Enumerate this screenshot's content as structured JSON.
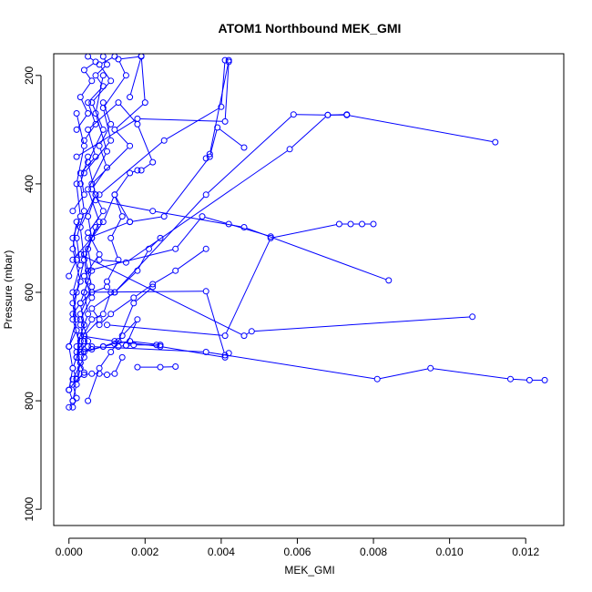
{
  "chart_data": {
    "type": "line",
    "title": "ATOM1 Northbound MEK_GMI",
    "xlabel": "MEK_GMI",
    "ylabel": "Pressure (mbar)",
    "xlim": [
      -0.0004,
      0.013
    ],
    "ylim": [
      1030,
      160
    ],
    "y_reversed": true,
    "grid": false,
    "x_ticks": [
      "0.000",
      "0.002",
      "0.004",
      "0.006",
      "0.008",
      "0.010",
      "0.012"
    ],
    "y_ticks": [
      "200",
      "400",
      "600",
      "800",
      "1000"
    ],
    "colors": {
      "series": "#0000ff",
      "axis": "#000000",
      "background": "#ffffff"
    },
    "series": [
      {
        "x": [
          0.0,
          0.0001,
          0.0,
          0.0002,
          0.0001,
          0.0003,
          0.0001,
          0.0002,
          0.0004,
          0.0003,
          0.0007,
          0.0005,
          0.0009,
          0.0006,
          0.0011,
          0.0008,
          0.0012
        ],
        "y": [
          812,
          800,
          780,
          760,
          740,
          700,
          650,
          600,
          540,
          480,
          420,
          360,
          300,
          250,
          210,
          180,
          165
        ]
      },
      {
        "x": [
          0.0001,
          0.0002,
          0.0001,
          0.0004,
          0.0002,
          0.0005,
          0.0003,
          0.0006,
          0.0004,
          0.0008,
          0.0005,
          0.001,
          0.0007,
          0.0009
        ],
        "y": [
          812,
          795,
          770,
          748,
          720,
          690,
          640,
          590,
          530,
          470,
          410,
          340,
          270,
          200
        ]
      },
      {
        "x": [
          0.0002,
          0.0004,
          0.0006,
          0.0008,
          0.001,
          0.0012,
          0.0014
        ],
        "y": [
          760,
          752,
          750,
          750,
          752,
          750,
          720
        ]
      },
      {
        "x": [
          0.0003,
          0.0005,
          0.0004,
          0.0008,
          0.0006,
          0.0012,
          0.0018,
          0.0021,
          0.0024
        ],
        "y": [
          730,
          700,
          680,
          650,
          630,
          600,
          560,
          520,
          500
        ]
      },
      {
        "x": [
          0.0018,
          0.0024,
          0.0028
        ],
        "y": [
          738,
          738,
          737
        ]
      },
      {
        "x": [
          0.0013,
          0.0015,
          0.0017,
          0.0023,
          0.0024
        ],
        "y": [
          700,
          698,
          697,
          697,
          697
        ]
      },
      {
        "x": [
          0.0008,
          0.0011,
          0.0017,
          0.0022,
          0.0028,
          0.0036
        ],
        "y": [
          660,
          640,
          610,
          585,
          560,
          520
        ]
      },
      {
        "x": [
          0.0003,
          0.0012,
          0.0024,
          0.0041,
          0.0042
        ],
        "y": [
          680,
          690,
          700,
          720,
          712
        ]
      },
      {
        "x": [
          0.0007,
          0.0022,
          0.0046,
          0.0084
        ],
        "y": [
          430,
          450,
          480,
          578
        ]
      },
      {
        "x": [
          0.0006,
          0.0036,
          0.0081,
          0.0095,
          0.0116,
          0.0121,
          0.0125
        ],
        "y": [
          700,
          710,
          760,
          740,
          760,
          762,
          762
        ]
      },
      {
        "x": [
          0.0004,
          0.0036,
          0.0041
        ],
        "y": [
          600,
          598,
          716
        ]
      },
      {
        "x": [
          0.001,
          0.0041,
          0.0053,
          0.0071,
          0.0074,
          0.0077,
          0.008
        ],
        "y": [
          660,
          680,
          500,
          474,
          474,
          474,
          474
        ]
      },
      {
        "x": [
          0.0005,
          0.0028,
          0.0035,
          0.0042,
          0.0053
        ],
        "y": [
          560,
          520,
          460,
          474,
          497
        ]
      },
      {
        "x": [
          0.0003,
          0.0046,
          0.0048,
          0.0106
        ],
        "y": [
          530,
          680,
          672,
          645
        ]
      },
      {
        "x": [
          0.0008,
          0.0015,
          0.0058,
          0.0068,
          0.0073
        ],
        "y": [
          540,
          545,
          336,
          273,
          272
        ]
      },
      {
        "x": [
          0.0012,
          0.0036,
          0.0059,
          0.0068,
          0.0073,
          0.0112
        ],
        "y": [
          600,
          420,
          272,
          273,
          273,
          323
        ]
      },
      {
        "x": [
          0.0005,
          0.0016,
          0.0025,
          0.0037,
          0.0039,
          0.0046
        ],
        "y": [
          500,
          470,
          460,
          350,
          296,
          333
        ]
      },
      {
        "x": [
          0.0008,
          0.0025,
          0.004,
          0.0041,
          0.0042,
          0.0037,
          0.0036
        ],
        "y": [
          420,
          320,
          258,
          172,
          172,
          345,
          353
        ]
      },
      {
        "x": [
          0.0002,
          0.0018,
          0.0041,
          0.0042
        ],
        "y": [
          350,
          280,
          285,
          175
        ]
      },
      {
        "x": [
          0.0004,
          0.0011,
          0.0009,
          0.0015,
          0.0013,
          0.0019,
          0.0016
        ],
        "y": [
          380,
          320,
          260,
          200,
          170,
          165,
          240
        ]
      },
      {
        "x": [
          0.0001,
          0.0004,
          0.0003,
          0.0007,
          0.0005,
          0.0013,
          0.0018,
          0.0022,
          0.0019
        ],
        "y": [
          450,
          420,
          380,
          350,
          300,
          250,
          290,
          360,
          375
        ]
      },
      {
        "x": [
          0.0,
          0.0002,
          0.0001,
          0.0003,
          0.0002,
          0.0004,
          0.0002
        ],
        "y": [
          570,
          540,
          500,
          460,
          400,
          330,
          270
        ]
      },
      {
        "x": [
          0.0,
          0.0002,
          0.0001,
          0.0003,
          0.0001,
          0.0002
        ],
        "y": [
          700,
          670,
          620,
          580,
          520,
          470
        ]
      },
      {
        "x": [
          0.0001,
          0.0006,
          0.0009,
          0.0012,
          0.0016,
          0.0018
        ],
        "y": [
          540,
          500,
          470,
          420,
          380,
          375
        ]
      },
      {
        "x": [
          0.0005,
          0.0008,
          0.0011,
          0.0014,
          0.0018,
          0.0015
        ],
        "y": [
          800,
          740,
          710,
          680,
          650,
          698
        ]
      },
      {
        "x": [
          0.0001,
          0.0004,
          0.0003,
          0.0006,
          0.0009,
          0.0011
        ],
        "y": [
          760,
          720,
          690,
          650,
          640,
          600
        ]
      },
      {
        "x": [
          0.0002,
          0.0003,
          0.0002,
          0.0004,
          0.0003,
          0.0005,
          0.0004,
          0.0006,
          0.0005,
          0.0007
        ],
        "y": [
          760,
          730,
          700,
          660,
          620,
          580,
          540,
          500,
          460,
          420
        ]
      },
      {
        "x": [
          0.0,
          0.0001,
          0.0,
          0.0002,
          0.0001,
          0.0003,
          0.0002,
          0.0004,
          0.0003,
          0.0005
        ],
        "y": [
          780,
          740,
          700,
          650,
          600,
          550,
          500,
          450,
          400,
          350
        ]
      },
      {
        "x": [
          0.0003,
          0.0006,
          0.0004,
          0.0008,
          0.0005,
          0.0009,
          0.0006,
          0.001,
          0.0008,
          0.0011,
          0.0009
        ],
        "y": [
          650,
          610,
          570,
          530,
          490,
          450,
          410,
          370,
          330,
          290,
          250
        ]
      },
      {
        "x": [
          0.0002,
          0.0003,
          0.0005,
          0.0004,
          0.0006,
          0.0005,
          0.0007
        ],
        "y": [
          720,
          680,
          640,
          600,
          560,
          520,
          480
        ]
      },
      {
        "x": [
          0.0001,
          0.0002,
          0.0003,
          0.0002,
          0.0004,
          0.0003
        ],
        "y": [
          800,
          770,
          740,
          710,
          690,
          660
        ]
      },
      {
        "x": [
          0.001,
          0.0013,
          0.0011,
          0.0014,
          0.0012,
          0.0016
        ],
        "y": [
          580,
          540,
          500,
          460,
          420,
          470
        ]
      },
      {
        "x": [
          0.0004,
          0.0007,
          0.0005,
          0.0009,
          0.0007,
          0.001,
          0.0009
        ],
        "y": [
          320,
          290,
          250,
          220,
          200,
          180,
          165
        ]
      },
      {
        "x": [
          0.0002,
          0.0005,
          0.0003,
          0.0006,
          0.0004,
          0.0007,
          0.0005
        ],
        "y": [
          300,
          270,
          240,
          210,
          190,
          175,
          165
        ]
      },
      {
        "x": [
          0.0006,
          0.0016,
          0.0012,
          0.002,
          0.0019
        ],
        "y": [
          400,
          330,
          300,
          250,
          164
        ]
      },
      {
        "x": [
          0.0003,
          0.0006,
          0.0009,
          0.0012,
          0.0016,
          0.0024
        ],
        "y": [
          710,
          705,
          700,
          695,
          690,
          697
        ]
      },
      {
        "x": [
          0.0004,
          0.0009,
          0.0013,
          0.0017,
          0.0022
        ],
        "y": [
          710,
          700,
          690,
          620,
          590
        ]
      },
      {
        "x": [
          0.0001,
          0.0003,
          0.0006,
          0.001
        ],
        "y": [
          640,
          620,
          600,
          590
        ]
      }
    ]
  }
}
